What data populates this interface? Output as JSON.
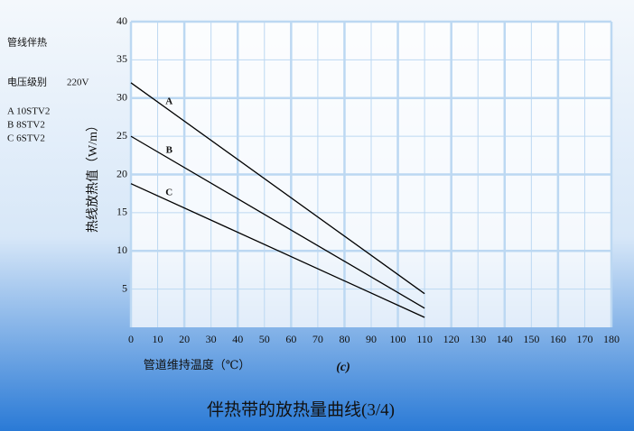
{
  "chart_data": {
    "type": "line",
    "title": "伴热带的放热量曲线(3/4)",
    "subtitle": "(c)",
    "xlabel": "管道维持温度（℃）",
    "ylabel": "热线放热值（W/m）",
    "notes": [
      "管线伴热",
      "电压级别",
      "220V",
      "A  10STV2",
      "B  8STV2",
      "C  6STV2"
    ],
    "x": [
      0,
      110
    ],
    "series": [
      {
        "name": "A",
        "color": "#000000",
        "values": [
          32,
          4.4
        ]
      },
      {
        "name": "B",
        "color": "#000000",
        "values": [
          25,
          2.5
        ]
      },
      {
        "name": "C",
        "color": "#000000",
        "values": [
          18.8,
          1.3
        ]
      }
    ],
    "xlim": [
      0,
      180
    ],
    "xticks": [
      0,
      10,
      20,
      30,
      40,
      50,
      60,
      70,
      80,
      90,
      100,
      110,
      120,
      130,
      140,
      150,
      160,
      170,
      180
    ],
    "ylim": [
      0,
      40
    ],
    "yticks": [
      5,
      10,
      15,
      20,
      25,
      30,
      35,
      40
    ],
    "grid": true
  }
}
